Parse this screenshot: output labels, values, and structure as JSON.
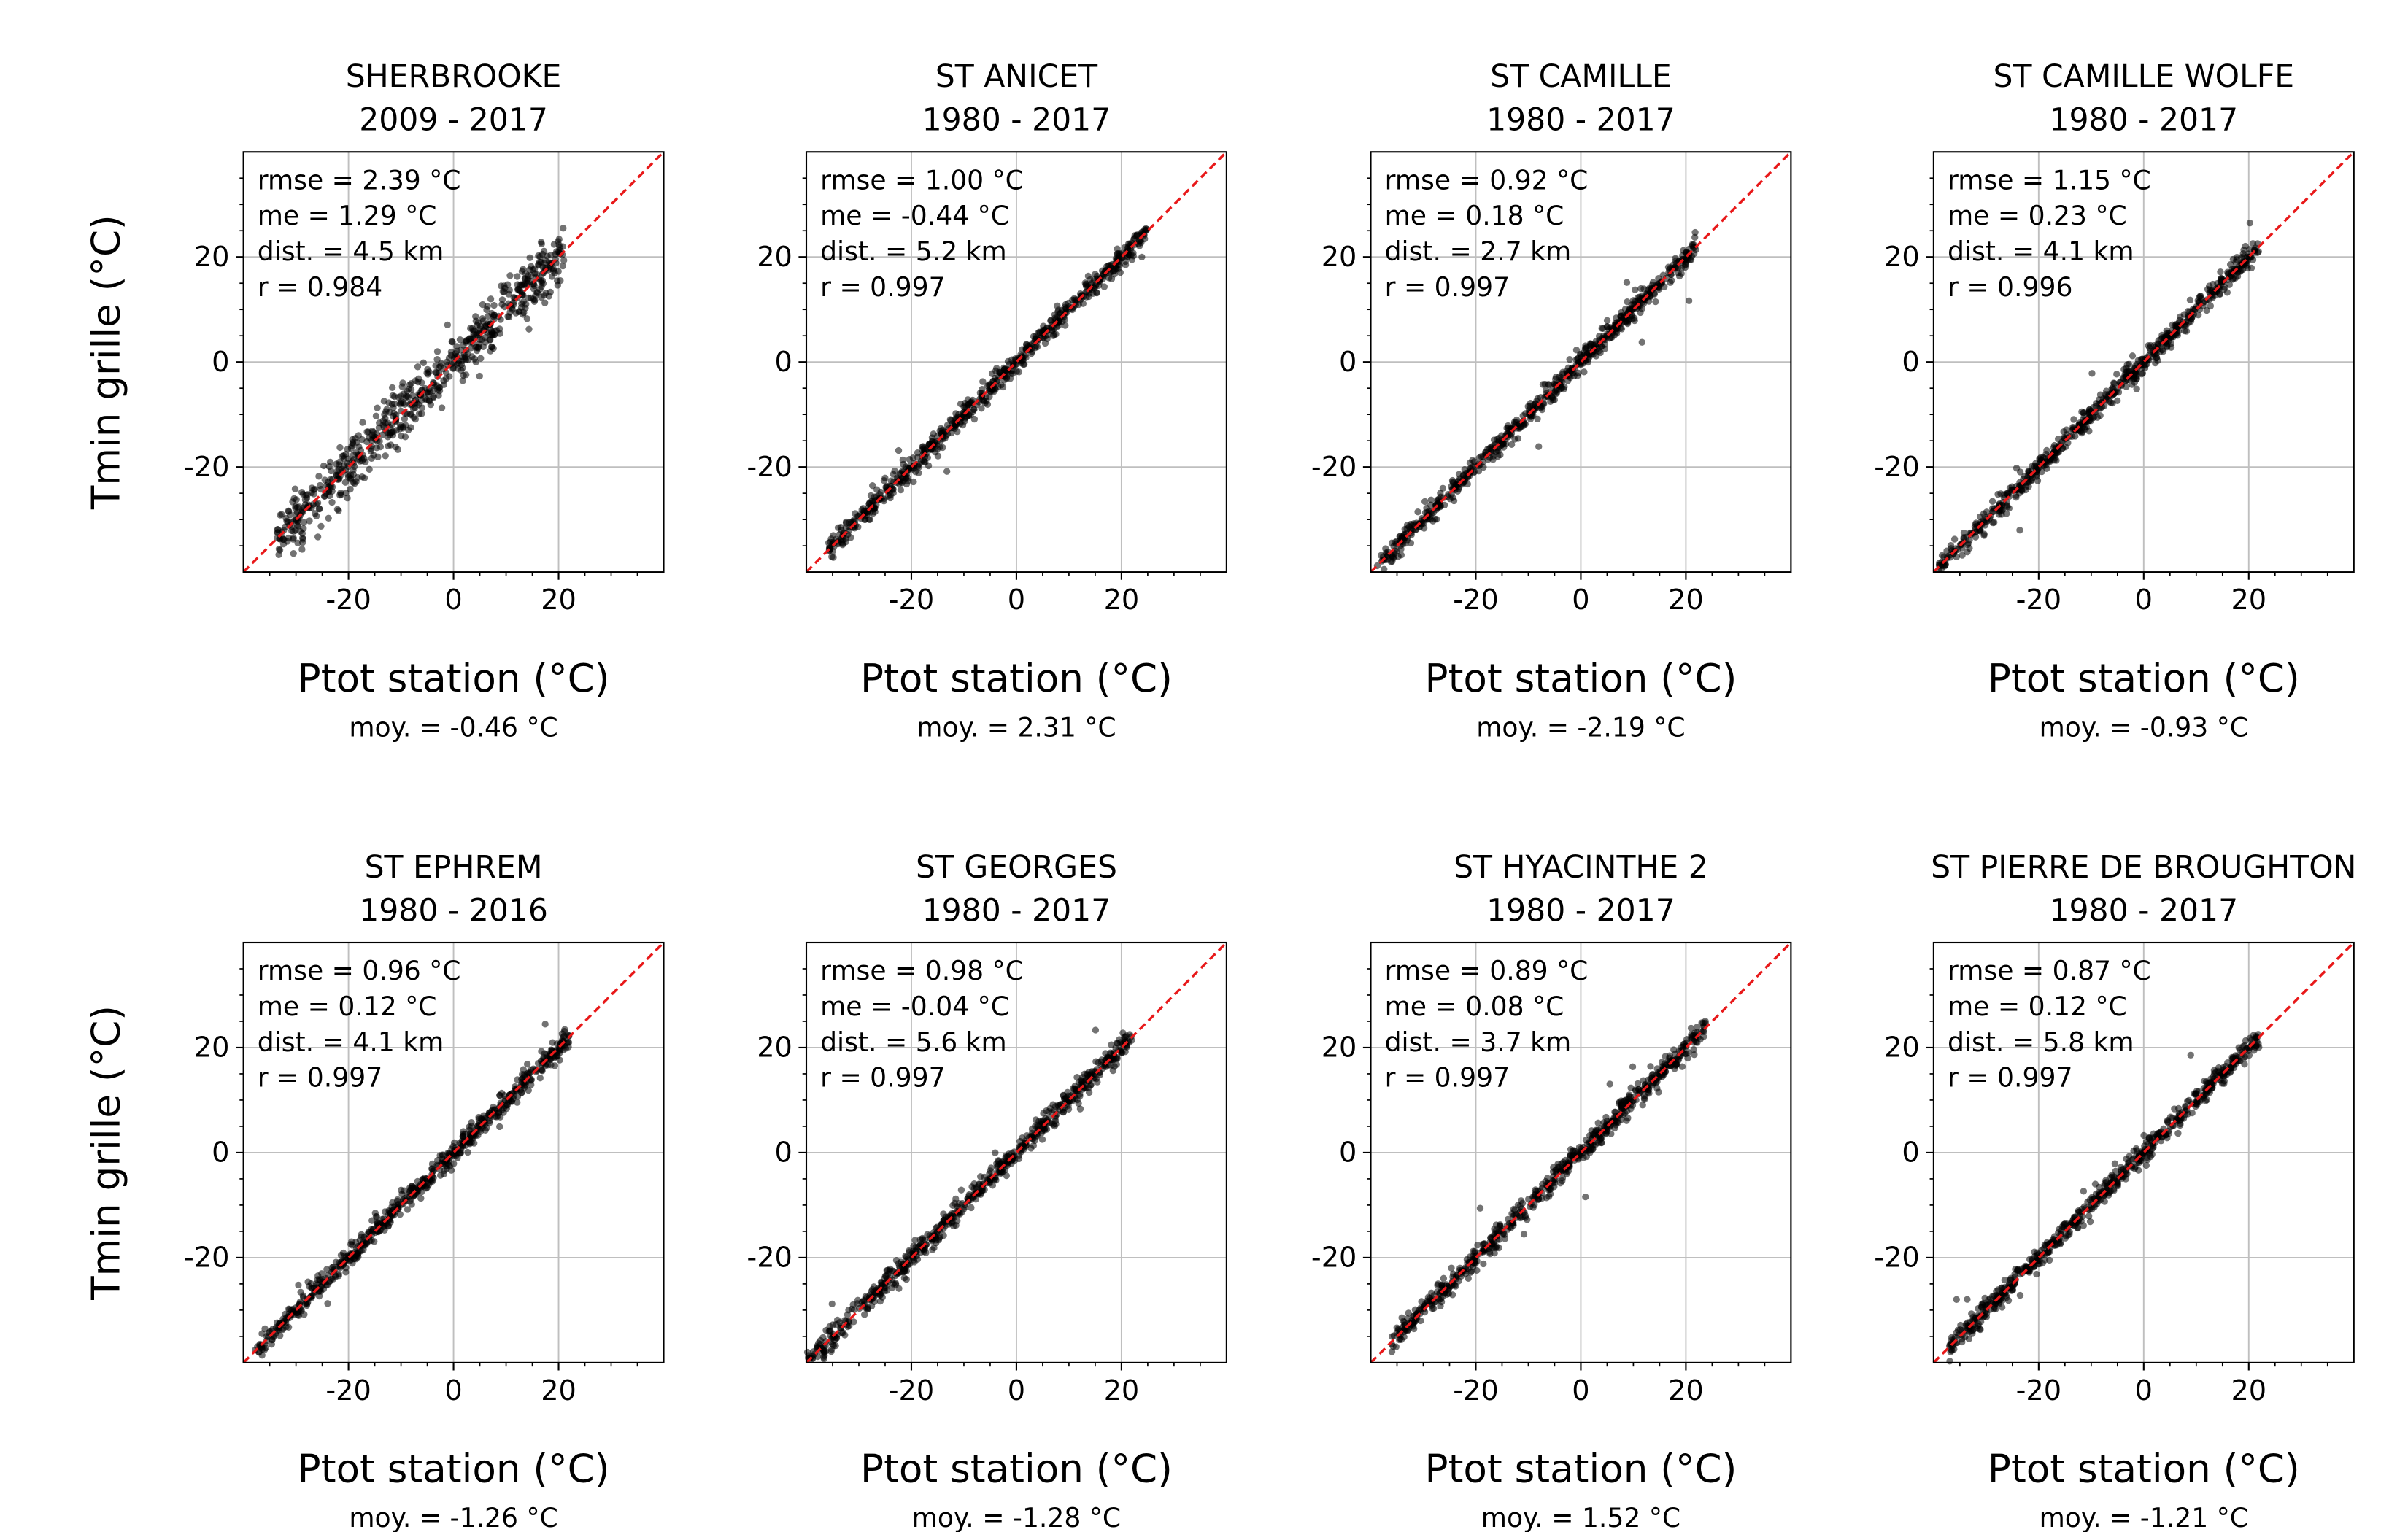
{
  "figure": {
    "x_axis_label": "Ptot station (°C)",
    "y_axis_label": "Tmin grille (°C)",
    "mean_prefix": "moy. = ",
    "unit": "°C",
    "colors": {
      "points": "#000000",
      "identity_line": "#e8191a",
      "grid": "#bfbfbf",
      "axes": "#000000",
      "text": "#000000"
    }
  },
  "chart_data": [
    {
      "type": "scatter",
      "title": "SHERBROOKE",
      "subtitle": "2009 - 2017",
      "xlabel": "Ptot station (°C)",
      "ylabel": "Tmin grille (°C)",
      "xlim": [
        -40,
        40
      ],
      "ylim": [
        -40,
        40
      ],
      "xticks": [
        -20,
        0,
        20
      ],
      "yticks": [
        -20,
        0,
        20
      ],
      "grid": true,
      "identity_line": true,
      "point_range": [
        -34,
        21
      ],
      "stats": [
        "rmse = 2.39 °C",
        "me = 1.29 °C",
        "dist. = 4.5 km",
        "r = 0.984"
      ],
      "mean_label": "moy. = -0.46 °C"
    },
    {
      "type": "scatter",
      "title": "ST ANICET",
      "subtitle": "1980 - 2017",
      "xlabel": "Ptot station (°C)",
      "ylabel": "",
      "xlim": [
        -40,
        40
      ],
      "ylim": [
        -40,
        40
      ],
      "xticks": [
        -20,
        0,
        20
      ],
      "yticks": [
        -20,
        0,
        20
      ],
      "grid": true,
      "identity_line": true,
      "point_range": [
        -36,
        25
      ],
      "stats": [
        "rmse = 1.00 °C",
        "me = -0.44 °C",
        "dist. = 5.2 km",
        "r = 0.997"
      ],
      "mean_label": "moy. = 2.31 °C"
    },
    {
      "type": "scatter",
      "title": "ST CAMILLE",
      "subtitle": "1980 - 2017",
      "xlabel": "Ptot station (°C)",
      "ylabel": "",
      "xlim": [
        -40,
        40
      ],
      "ylim": [
        -40,
        40
      ],
      "xticks": [
        -20,
        0,
        20
      ],
      "yticks": [
        -20,
        0,
        20
      ],
      "grid": true,
      "identity_line": true,
      "point_range": [
        -39,
        22
      ],
      "stats": [
        "rmse = 0.92 °C",
        "me = 0.18 °C",
        "dist. = 2.7 km",
        "r = 0.997"
      ],
      "mean_label": "moy. = -2.19 °C"
    },
    {
      "type": "scatter",
      "title": "ST CAMILLE WOLFE",
      "subtitle": "1980 - 2017",
      "xlabel": "Ptot station (°C)",
      "ylabel": "",
      "xlim": [
        -40,
        40
      ],
      "ylim": [
        -40,
        40
      ],
      "xticks": [
        -20,
        0,
        20
      ],
      "yticks": [
        -20,
        0,
        20
      ],
      "grid": true,
      "identity_line": true,
      "point_range": [
        -39,
        22
      ],
      "stats": [
        "rmse = 1.15 °C",
        "me = 0.23 °C",
        "dist. = 4.1 km",
        "r = 0.996"
      ],
      "mean_label": "moy. = -0.93 °C"
    },
    {
      "type": "scatter",
      "title": "ST EPHREM",
      "subtitle": "1980 - 2016",
      "xlabel": "Ptot station (°C)",
      "ylabel": "Tmin grille (°C)",
      "xlim": [
        -40,
        40
      ],
      "ylim": [
        -40,
        40
      ],
      "xticks": [
        -20,
        0,
        20
      ],
      "yticks": [
        -20,
        0,
        20
      ],
      "grid": true,
      "identity_line": true,
      "point_range": [
        -38,
        22
      ],
      "stats": [
        "rmse = 0.96 °C",
        "me = 0.12 °C",
        "dist. = 4.1 km",
        "r = 0.997"
      ],
      "mean_label": "moy. = -1.26 °C"
    },
    {
      "type": "scatter",
      "title": "ST GEORGES",
      "subtitle": "1980 - 2017",
      "xlabel": "Ptot station (°C)",
      "ylabel": "",
      "xlim": [
        -40,
        40
      ],
      "ylim": [
        -40,
        40
      ],
      "xticks": [
        -20,
        0,
        20
      ],
      "yticks": [
        -20,
        0,
        20
      ],
      "grid": true,
      "identity_line": true,
      "point_range": [
        -40,
        22
      ],
      "stats": [
        "rmse = 0.98 °C",
        "me = -0.04 °C",
        "dist. = 5.6 km",
        "r = 0.997"
      ],
      "mean_label": "moy. = -1.28 °C"
    },
    {
      "type": "scatter",
      "title": "ST HYACINTHE 2",
      "subtitle": "1980 - 2017",
      "xlabel": "Ptot station (°C)",
      "ylabel": "",
      "xlim": [
        -40,
        40
      ],
      "ylim": [
        -40,
        40
      ],
      "xticks": [
        -20,
        0,
        20
      ],
      "yticks": [
        -20,
        0,
        20
      ],
      "grid": true,
      "identity_line": true,
      "point_range": [
        -36,
        24
      ],
      "stats": [
        "rmse = 0.89 °C",
        "me = 0.08 °C",
        "dist. = 3.7 km",
        "r = 0.997"
      ],
      "mean_label": "moy. = 1.52 °C"
    },
    {
      "type": "scatter",
      "title": "ST PIERRE DE BROUGHTON",
      "subtitle": "1980 - 2017",
      "xlabel": "Ptot station (°C)",
      "ylabel": "",
      "xlim": [
        -40,
        40
      ],
      "ylim": [
        -40,
        40
      ],
      "xticks": [
        -20,
        0,
        20
      ],
      "yticks": [
        -20,
        0,
        20
      ],
      "grid": true,
      "identity_line": true,
      "point_range": [
        -37,
        22
      ],
      "stats": [
        "rmse = 0.87 °C",
        "me = 0.12 °C",
        "dist. = 5.8 km",
        "r = 0.997"
      ],
      "mean_label": "moy. = -1.21 °C"
    }
  ]
}
